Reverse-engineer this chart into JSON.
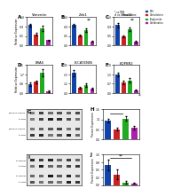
{
  "panel_A": {
    "title": "Vimentin",
    "categories": [
      "PBS",
      "Gemcitabine",
      "Praglumide",
      "Combination"
    ],
    "values": [
      1.0,
      0.55,
      0.85,
      0.25
    ],
    "errors": [
      0.08,
      0.06,
      0.12,
      0.04
    ],
    "colors": [
      "#1144aa",
      "#cc2222",
      "#22aa22",
      "#aa22aa"
    ],
    "ylabel": "Relative Expression",
    "ylim": [
      0,
      1.4
    ]
  },
  "panel_B": {
    "title": "Zeb1",
    "categories": [
      "PBS",
      "Gemcitabine",
      "Praglumide",
      "Combination"
    ],
    "values": [
      1.0,
      0.5,
      0.75,
      0.2
    ],
    "errors": [
      0.07,
      0.05,
      0.1,
      0.03
    ],
    "colors": [
      "#1144aa",
      "#cc2222",
      "#22aa22",
      "#aa22aa"
    ],
    "ylabel": "Relative Expression",
    "ylim": [
      0,
      1.4
    ],
    "sig": "**"
  },
  "panel_C": {
    "title": "Snai2",
    "categories": [
      "PBS",
      "Gemcitabine",
      "Praglumide",
      "Combination"
    ],
    "values": [
      1.0,
      0.45,
      0.8,
      0.18
    ],
    "errors": [
      0.09,
      0.05,
      0.11,
      0.03
    ],
    "colors": [
      "#1144aa",
      "#cc2222",
      "#22aa22",
      "#aa22aa"
    ],
    "ylabel": "Relative Expression",
    "ylim": [
      0,
      1.4
    ],
    "sig": "**"
  },
  "panel_D": {
    "title": "ERAS",
    "categories": [
      "PBS",
      "Gemcitabine",
      "Praglumide",
      "Combination"
    ],
    "values": [
      0.8,
      1.0,
      1.8,
      0.15
    ],
    "errors": [
      0.15,
      0.12,
      0.3,
      0.05
    ],
    "colors": [
      "#1144aa",
      "#cc2222",
      "#22aa22",
      "#aa22aa"
    ],
    "ylabel": "Relative Expression",
    "ylim": [
      0,
      2.5
    ]
  },
  "panel_E": {
    "title": "B-CATENIN",
    "categories": [
      "PBS",
      "Gemcitabine",
      "Praglumide",
      "Combination"
    ],
    "values": [
      2.5,
      0.6,
      1.0,
      0.5
    ],
    "errors": [
      0.4,
      0.1,
      0.2,
      0.1
    ],
    "colors": [
      "#1144aa",
      "#cc2222",
      "#22aa22",
      "#aa22aa"
    ],
    "ylabel": "Relative Expression",
    "ylim": [
      0,
      3.5
    ]
  },
  "panel_F": {
    "title": "EQPBR2",
    "categories": [
      "PBS",
      "Gemcitabine",
      "Praglumide",
      "Combination"
    ],
    "values": [
      1.3,
      0.75,
      0.9,
      0.2
    ],
    "errors": [
      0.12,
      0.1,
      0.15,
      0.04
    ],
    "colors": [
      "#1144aa",
      "#cc2222",
      "#22aa22",
      "#aa22aa"
    ],
    "ylabel": "Relative Expression",
    "ylim": [
      0,
      2.0
    ]
  },
  "panel_H": {
    "categories": [
      "PBS",
      "Gemcitabine",
      "Praglumide",
      "Combination"
    ],
    "values": [
      1.0,
      0.55,
      1.1,
      0.62
    ],
    "errors": [
      0.08,
      0.07,
      0.12,
      0.08
    ],
    "colors": [
      "#1144aa",
      "#cc2222",
      "#22aa22",
      "#aa22aa"
    ],
    "ylabel": "Protein Expression",
    "ylim": [
      0,
      1.6
    ],
    "sig_line": true,
    "sig_text": "*"
  },
  "panel_J": {
    "categories": [
      "PBS",
      "Gemcitabine",
      "Praglumide",
      "Combination"
    ],
    "values": [
      0.65,
      0.35,
      0.08,
      0.05
    ],
    "errors": [
      0.18,
      0.15,
      0.04,
      0.02
    ],
    "colors": [
      "#1144aa",
      "#cc2222",
      "#22aa22",
      "#aa22aa"
    ],
    "ylabel": "Protein Expression",
    "ylim": [
      0,
      1.0
    ],
    "sig_line": true,
    "sig_text": "**"
  },
  "legend": {
    "labels": [
      "PBS",
      "Gemcitabine",
      "Praglumide",
      "Combination"
    ],
    "colors": [
      "#1144aa",
      "#cc2222",
      "#22aa22",
      "#aa22aa"
    ]
  },
  "wb_label_H": "Phospho-Paxillin",
  "wb_label_I": "B-catenin",
  "background_color": "#ffffff"
}
